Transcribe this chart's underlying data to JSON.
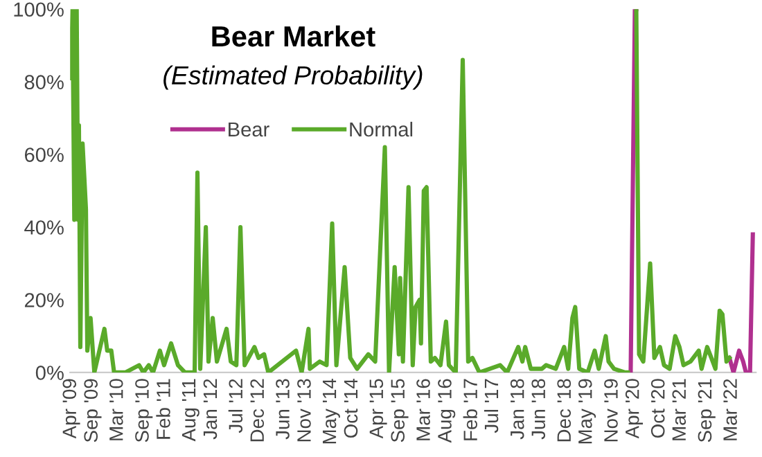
{
  "chart_data": {
    "type": "line",
    "title": "Bear Market",
    "subtitle": "(Estimated Probability)",
    "xlim": [
      "2009-03-25",
      "2022-08-20"
    ],
    "ylim": [
      0,
      100
    ],
    "yticks": [
      {
        "value": 0,
        "label": "0%"
      },
      {
        "value": 20,
        "label": "20%"
      },
      {
        "value": 40,
        "label": "40%"
      },
      {
        "value": 60,
        "label": "60%"
      },
      {
        "value": 80,
        "label": "80%"
      },
      {
        "value": 100,
        "label": "100%"
      }
    ],
    "xticks": [
      {
        "value": "2009-04-01",
        "label": "Apr '09"
      },
      {
        "value": "2009-09-01",
        "label": "Sep '09"
      },
      {
        "value": "2010-03-01",
        "label": "Mar '10"
      },
      {
        "value": "2010-09-01",
        "label": "Sep '10"
      },
      {
        "value": "2011-02-01",
        "label": "Feb '11"
      },
      {
        "value": "2011-08-01",
        "label": "Aug '11"
      },
      {
        "value": "2012-01-01",
        "label": "Jan '12"
      },
      {
        "value": "2012-07-01",
        "label": "Jul '12"
      },
      {
        "value": "2012-12-01",
        "label": "Dec '12"
      },
      {
        "value": "2013-06-01",
        "label": "Jun '13"
      },
      {
        "value": "2013-11-01",
        "label": "Nov '13"
      },
      {
        "value": "2014-05-01",
        "label": "May '14"
      },
      {
        "value": "2014-10-01",
        "label": "Oct '14"
      },
      {
        "value": "2015-04-01",
        "label": "Apr '15"
      },
      {
        "value": "2015-09-01",
        "label": "Sep '15"
      },
      {
        "value": "2016-03-01",
        "label": "Mar '16"
      },
      {
        "value": "2016-08-01",
        "label": "Aug '16"
      },
      {
        "value": "2017-02-01",
        "label": "Feb '17"
      },
      {
        "value": "2017-07-01",
        "label": "Jul '17"
      },
      {
        "value": "2018-01-01",
        "label": "Jan '18"
      },
      {
        "value": "2018-06-01",
        "label": "Jun '18"
      },
      {
        "value": "2018-12-01",
        "label": "Dec '18"
      },
      {
        "value": "2019-05-01",
        "label": "May '19"
      },
      {
        "value": "2019-11-01",
        "label": "Nov '19"
      },
      {
        "value": "2020-04-01",
        "label": "Apr '20"
      },
      {
        "value": "2020-10-01",
        "label": "Oct '20"
      },
      {
        "value": "2021-03-01",
        "label": "Mar '21"
      },
      {
        "value": "2021-09-01",
        "label": "Sep '21"
      },
      {
        "value": "2022-03-01",
        "label": "Mar '22"
      }
    ],
    "grid": false,
    "legend": "top",
    "marker": "none",
    "line_style": "solid",
    "series": [
      {
        "name": "Bear",
        "color": "#b0308f",
        "x": [
          "2020-03-09",
          "2020-04-08",
          "2020-04-18",
          "2020-05-01",
          "2022-02-12",
          "2022-03-13",
          "2022-04-22",
          "2022-05-21",
          "2022-06-10",
          "2022-07-09",
          "2022-07-29"
        ],
        "values": [
          0,
          100,
          100,
          null,
          4,
          0,
          6,
          3,
          0,
          0,
          38
        ]
      },
      {
        "name": "Normal",
        "color": "#5aaa2a",
        "x": [
          "2009-04-01",
          "2009-04-11",
          "2009-04-24",
          "2009-05-11",
          "2009-05-21",
          "2009-05-27",
          "2009-06-06",
          "2009-06-22",
          "2009-07-16",
          "2009-07-26",
          "2009-08-18",
          "2009-09-14",
          "2009-11-25",
          "2009-12-15",
          "2010-01-13",
          "2010-02-02",
          "2010-04-23",
          "2010-07-31",
          "2010-08-30",
          "2010-10-08",
          "2010-11-07",
          "2010-12-26",
          "2011-01-25",
          "2011-03-16",
          "2011-05-04",
          "2011-06-23",
          "2011-08-31",
          "2011-09-20",
          "2011-10-10",
          "2011-11-19",
          "2011-12-08",
          "2012-01-07",
          "2012-02-06",
          "2012-04-15",
          "2012-05-15",
          "2012-06-24",
          "2012-07-23",
          "2012-08-22",
          "2012-10-31",
          "2012-11-29",
          "2013-01-08",
          "2013-02-07",
          "2013-08-24",
          "2013-10-03",
          "2013-11-21",
          "2013-12-01",
          "2014-02-09",
          "2014-03-30",
          "2014-05-09",
          "2014-06-08",
          "2014-08-06",
          "2014-09-15",
          "2014-11-03",
          "2015-01-22",
          "2015-03-12",
          "2015-05-20",
          "2015-06-19",
          "2015-07-29",
          "2015-08-28",
          "2015-09-06",
          "2015-09-26",
          "2015-11-05",
          "2015-12-05",
          "2015-12-25",
          "2016-01-23",
          "2016-02-02",
          "2016-02-22",
          "2016-03-13",
          "2016-04-12",
          "2016-05-11",
          "2016-06-20",
          "2016-07-30",
          "2016-08-19",
          "2016-10-07",
          "2016-11-26",
          "2017-01-04",
          "2017-02-03",
          "2017-03-25",
          "2017-08-20",
          "2017-10-09",
          "2017-12-27",
          "2018-01-26",
          "2018-02-15",
          "2018-03-27",
          "2018-06-14",
          "2018-07-14",
          "2018-09-21",
          "2018-11-20",
          "2018-12-19",
          "2019-01-18",
          "2019-02-07",
          "2019-03-08",
          "2019-05-07",
          "2019-06-26",
          "2019-07-25",
          "2019-09-13",
          "2019-10-03",
          "2019-11-11",
          "2020-01-29",
          "2020-02-18",
          "2020-03-20",
          "2020-04-18",
          "2020-05-08",
          "2020-06-07",
          "2020-07-26",
          "2020-08-25",
          "2020-10-04",
          "2020-11-02",
          "2020-12-12",
          "2021-01-21",
          "2021-02-20",
          "2021-03-21",
          "2021-05-10",
          "2021-07-08",
          "2021-07-28",
          "2021-09-06",
          "2021-10-06",
          "2021-11-04",
          "2021-12-04",
          "2021-12-24",
          "2022-01-22",
          "2022-02-12"
        ],
        "values": [
          81,
          100,
          42,
          100,
          42,
          68,
          7,
          63,
          45,
          6,
          15,
          0,
          12,
          6,
          6,
          0,
          0,
          2,
          0,
          2,
          0,
          6,
          2,
          8,
          2,
          0,
          0,
          55,
          1,
          40,
          3,
          15,
          3,
          12,
          3,
          2,
          40,
          2,
          7,
          4,
          5,
          0,
          6,
          0,
          12,
          1,
          3,
          2,
          41,
          2,
          29,
          4,
          1,
          5,
          3,
          62,
          0,
          29,
          5,
          26,
          3,
          51,
          2,
          18,
          20,
          8,
          50,
          51,
          3,
          4,
          2,
          14,
          2,
          0,
          86,
          3,
          4,
          0,
          2,
          0,
          7,
          3,
          7,
          1,
          1,
          2,
          1,
          7,
          1,
          15,
          18,
          1,
          0,
          6,
          1,
          10,
          3,
          1,
          0,
          0,
          null,
          100,
          5,
          3,
          30,
          4,
          7,
          2,
          1,
          10,
          7,
          2,
          3,
          6,
          1,
          7,
          4,
          1,
          17,
          16,
          3,
          4
        ]
      }
    ]
  }
}
